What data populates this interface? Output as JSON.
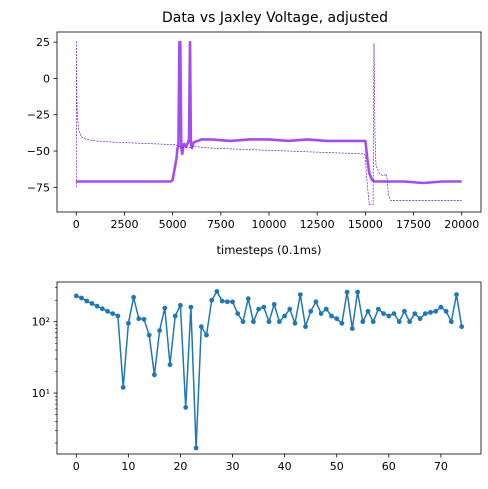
{
  "chart_data": [
    {
      "type": "line",
      "title": "Data vs Jaxley Voltage, adjusted",
      "xlabel": "timesteps (0.1ms)",
      "ylabel": "",
      "xlim": [
        -1000,
        21000
      ],
      "ylim": [
        -92,
        32
      ],
      "xticks": [
        0,
        2500,
        5000,
        7500,
        10000,
        12500,
        15000,
        17500,
        20000
      ],
      "xtick_labels": [
        "0",
        "2500",
        "5000",
        "7500",
        "10000",
        "12500",
        "15000",
        "17500",
        "20000"
      ],
      "yticks": [
        25,
        0,
        -25,
        -50,
        -75
      ],
      "ytick_labels": [
        "25",
        "0",
        "−25",
        "−50",
        "−75"
      ],
      "grid": false,
      "series": [
        {
          "color": "#a44cf0",
          "style": "thick solid",
          "x": [
            0,
            100,
            300,
            4900,
            5000,
            5200,
            5250,
            5300,
            5350,
            5400,
            5450,
            5500,
            5550,
            5600,
            5700,
            5800,
            5850,
            5900,
            5950,
            6000,
            6100,
            6300,
            6500,
            7000,
            8000,
            9000,
            10000,
            11000,
            12000,
            13000,
            14000,
            14900,
            15000,
            15100,
            15200,
            15350,
            15500,
            16000,
            17000,
            18000,
            19000,
            20000
          ],
          "y": [
            -71,
            -71,
            -71,
            -71,
            -70,
            -55,
            -48,
            -47,
            25,
            25,
            -48,
            -52,
            -47,
            -45,
            -47,
            -44,
            -42,
            25,
            -45,
            -48,
            -44,
            -43,
            -42,
            -42,
            -43,
            -42,
            -42,
            -43,
            -42,
            -43,
            -43,
            -43,
            -43,
            -55,
            -65,
            -70,
            -71,
            -71,
            -71,
            -72,
            -71,
            -71
          ]
        },
        {
          "color": "#6a1bb5",
          "style": "thin dashed",
          "x": [
            0,
            10,
            30,
            60,
            120,
            250,
            500,
            1000,
            2000,
            3000,
            4000,
            4900,
            5000,
            5100,
            5300,
            5400,
            5600,
            5800,
            5950,
            6000,
            6200,
            7000,
            8000,
            9000,
            10000,
            11000,
            12000,
            13000,
            14000,
            14900,
            15000,
            15050,
            15200,
            15400,
            15450,
            15500,
            15550,
            15700,
            15900,
            16100,
            16200,
            16300,
            16500,
            17000,
            18000,
            19000,
            20000
          ],
          "y": [
            -75,
            26,
            -15,
            -25,
            -35,
            -40,
            -42,
            -43,
            -44,
            -44.5,
            -45,
            -45.5,
            -46,
            -45.5,
            -46.5,
            -47,
            -47.5,
            -47.5,
            -47.5,
            -47,
            -47,
            -48,
            -48.5,
            -49,
            -49.5,
            -50,
            -50.5,
            -51,
            -51.5,
            -52,
            -53,
            -65,
            -87,
            -87,
            24,
            -40,
            -60,
            -65,
            -67,
            -66,
            -80,
            -84,
            -84,
            -84,
            -84,
            -84,
            -84
          ]
        }
      ]
    },
    {
      "type": "line",
      "title": "",
      "xlabel": "",
      "ylabel": "",
      "yscale": "log",
      "xlim": [
        -3.7,
        77.7
      ],
      "ylim": [
        1.4,
        360
      ],
      "xticks": [
        0,
        10,
        20,
        30,
        40,
        50,
        60,
        70
      ],
      "xtick_labels": [
        "0",
        "10",
        "20",
        "30",
        "40",
        "50",
        "60",
        "70"
      ],
      "yticks": [
        10,
        100
      ],
      "ytick_labels": [
        "10¹",
        "10²"
      ],
      "grid": false,
      "marker": "dot",
      "color": "#1f77b4",
      "x": [
        0,
        1,
        2,
        3,
        4,
        5,
        6,
        7,
        8,
        9,
        10,
        11,
        12,
        13,
        14,
        15,
        16,
        17,
        18,
        19,
        20,
        21,
        22,
        23,
        24,
        25,
        26,
        27,
        28,
        29,
        30,
        31,
        32,
        33,
        34,
        35,
        36,
        37,
        38,
        39,
        40,
        41,
        42,
        43,
        44,
        45,
        46,
        47,
        48,
        49,
        50,
        51,
        52,
        53,
        54,
        55,
        56,
        57,
        58,
        59,
        60,
        61,
        62,
        63,
        64,
        65,
        66,
        67,
        68,
        69,
        70,
        71,
        72,
        73,
        74
      ],
      "y": [
        230,
        215,
        195,
        180,
        165,
        152,
        140,
        130,
        120,
        12,
        95,
        220,
        110,
        108,
        65,
        18,
        75,
        155,
        25,
        120,
        170,
        6.3,
        160,
        1.7,
        85,
        65,
        200,
        265,
        195,
        190,
        190,
        130,
        100,
        210,
        100,
        150,
        160,
        100,
        175,
        100,
        120,
        150,
        95,
        240,
        85,
        140,
        190,
        130,
        150,
        120,
        110,
        95,
        260,
        80,
        260,
        100,
        140,
        100,
        150,
        130,
        120,
        130,
        100,
        140,
        100,
        130,
        110,
        130,
        135,
        140,
        160,
        140,
        100,
        240,
        85
      ]
    }
  ]
}
